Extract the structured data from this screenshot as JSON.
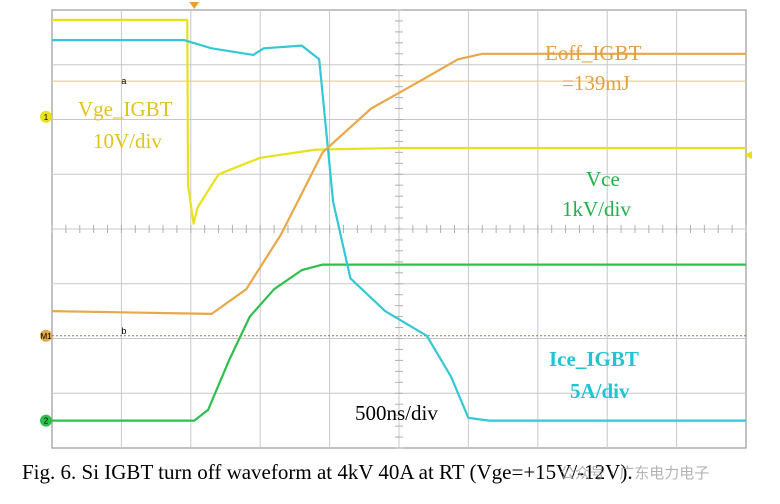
{
  "chart_data": {
    "type": "line",
    "timebase": "500ns/div",
    "grid": true,
    "divisions": {
      "x": 10,
      "y": 8
    },
    "series": [
      {
        "name": "Vge_IGBT",
        "scale": "10V/div",
        "color": "#e6e21c",
        "points": [
          [
            0,
            0.18
          ],
          [
            1.95,
            0.18
          ],
          [
            1.96,
            3.2
          ],
          [
            2.04,
            3.9
          ],
          [
            2.1,
            3.6
          ],
          [
            2.4,
            3.0
          ],
          [
            3.0,
            2.7
          ],
          [
            3.8,
            2.55
          ],
          [
            5.0,
            2.52
          ],
          [
            10,
            2.52
          ]
        ]
      },
      {
        "name": "Vce",
        "scale": "1kV/div",
        "color": "#2fbf4f",
        "points": [
          [
            0,
            7.5
          ],
          [
            2.05,
            7.5
          ],
          [
            2.25,
            7.3
          ],
          [
            2.55,
            6.4
          ],
          [
            2.85,
            5.6
          ],
          [
            3.2,
            5.1
          ],
          [
            3.6,
            4.75
          ],
          [
            3.9,
            4.65
          ],
          [
            10,
            4.65
          ]
        ]
      },
      {
        "name": "Ice_IGBT",
        "scale": "5A/div",
        "color": "#34c8d4",
        "points": [
          [
            0,
            0.55
          ],
          [
            1.9,
            0.55
          ],
          [
            2.3,
            0.7
          ],
          [
            2.9,
            0.82
          ],
          [
            3.05,
            0.7
          ],
          [
            3.6,
            0.65
          ],
          [
            3.85,
            0.9
          ],
          [
            4.05,
            3.5
          ],
          [
            4.3,
            4.9
          ],
          [
            4.8,
            5.5
          ],
          [
            5.4,
            5.95
          ],
          [
            5.75,
            6.7
          ],
          [
            6.0,
            7.45
          ],
          [
            6.3,
            7.5
          ],
          [
            10,
            7.5
          ]
        ]
      },
      {
        "name": "Eoff_IGBT",
        "value": "=139mJ",
        "color": "#e8a84a",
        "points": [
          [
            0,
            5.5
          ],
          [
            2.3,
            5.55
          ],
          [
            2.8,
            5.1
          ],
          [
            3.3,
            4.1
          ],
          [
            3.9,
            2.6
          ],
          [
            4.6,
            1.8
          ],
          [
            5.3,
            1.3
          ],
          [
            5.85,
            0.9
          ],
          [
            6.2,
            0.8
          ],
          [
            10,
            0.8
          ]
        ]
      }
    ],
    "markers": {
      "ch1": "1",
      "ch2": "2",
      "math": "M1",
      "ref_a": "a",
      "ref_b": "b"
    }
  },
  "labels": {
    "vge_name": "Vge_IGBT",
    "vge_scale": "10V/div",
    "eoff_name": "Eoff_IGBT",
    "eoff_value": "=139mJ",
    "vce_name": "Vce",
    "vce_scale": "1kV/div",
    "ice_name": "Ice_IGBT",
    "ice_scale": "5A/div",
    "timebase": "500ns/div"
  },
  "caption": "Fig. 6.   Si IGBT turn off waveform at 4kV 40A at RT (Vge=+15V/-12V).",
  "watermark": "公众号 · 广东电力电子"
}
